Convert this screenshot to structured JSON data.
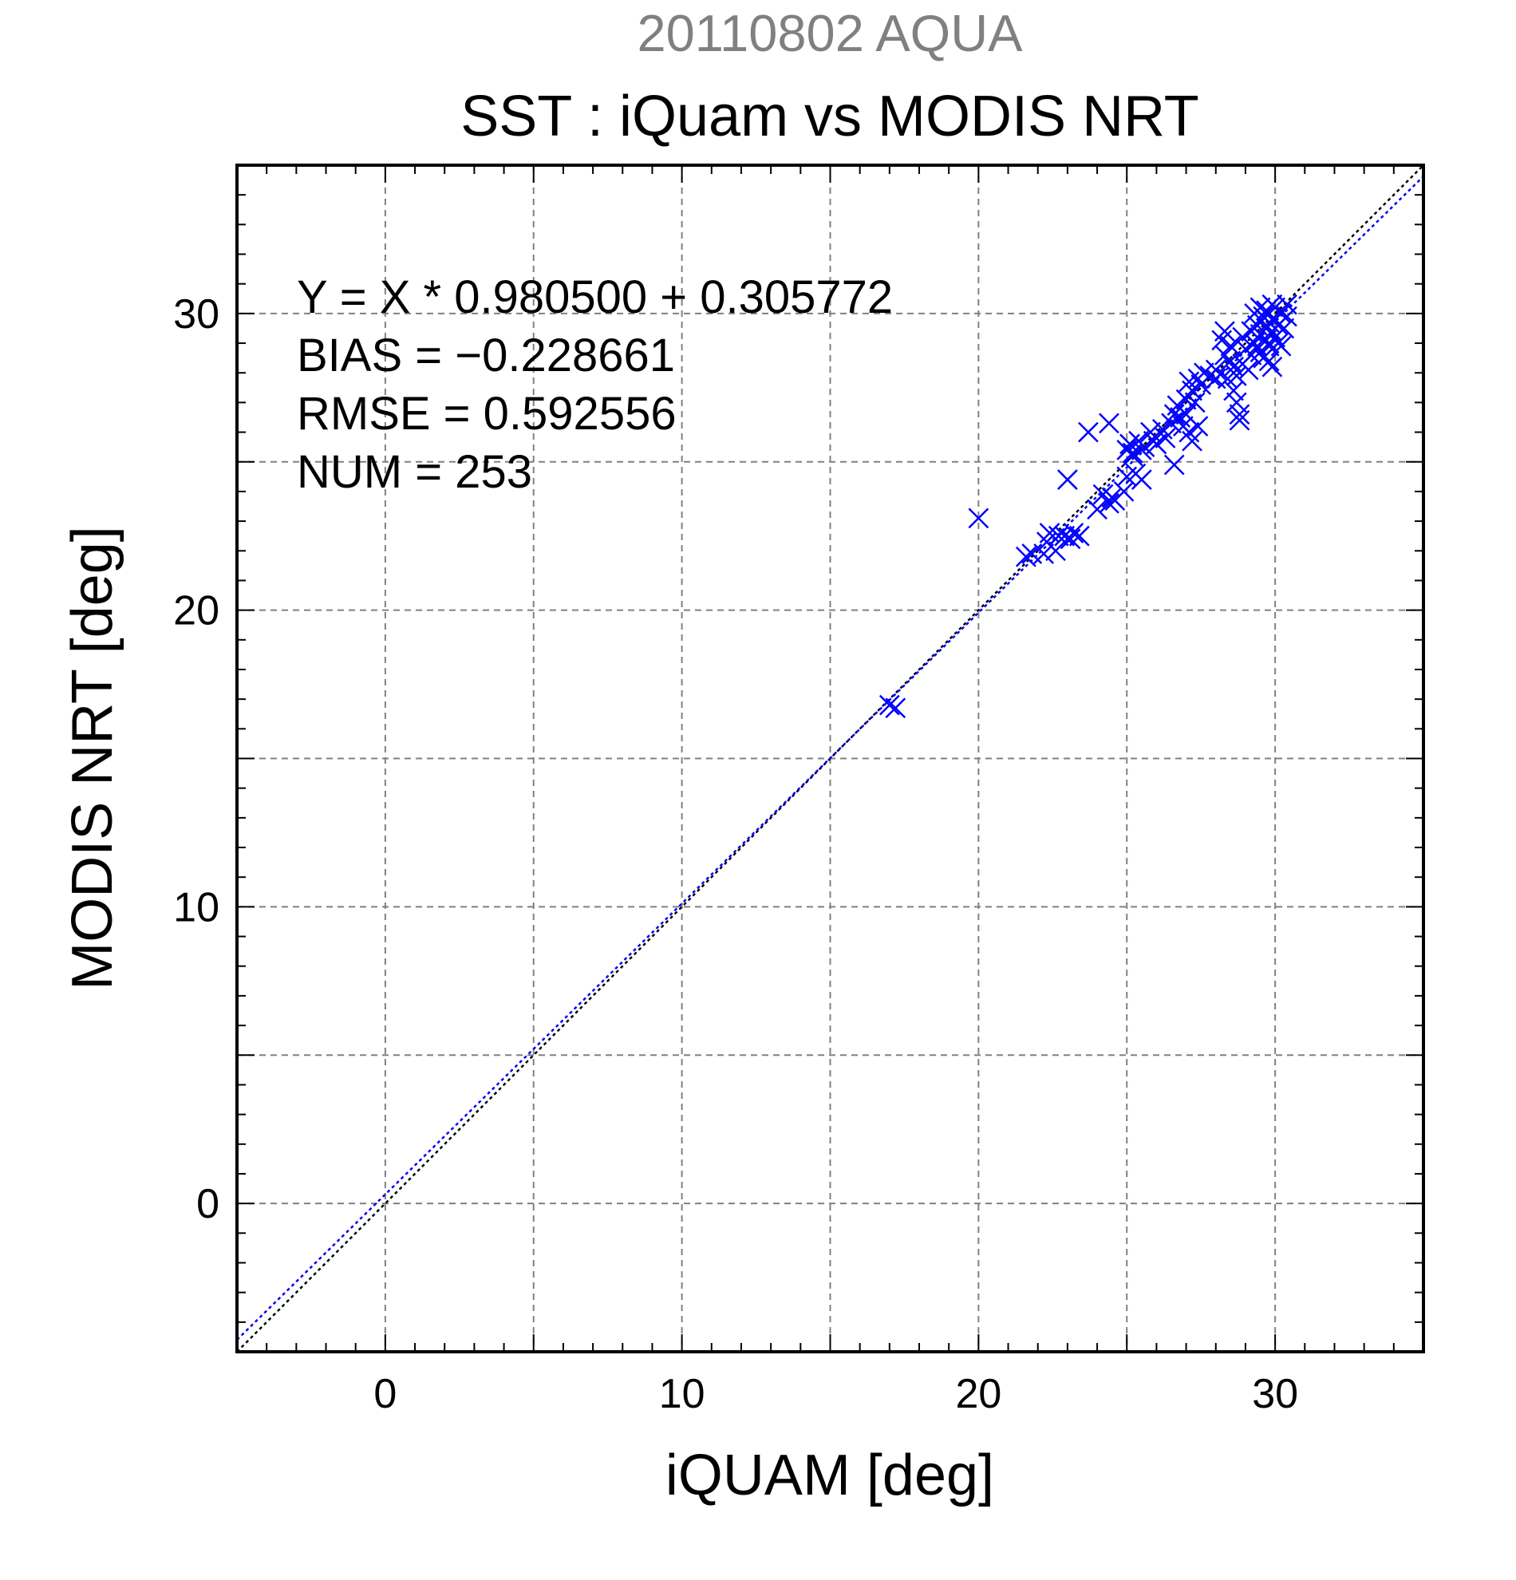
{
  "chart_data": {
    "type": "scatter",
    "suptitle": "20110802 AQUA",
    "title": "SST : iQuam vs MODIS NRT",
    "xlabel": "iQUAM [deg]",
    "ylabel": "MODIS NRT [deg]",
    "xlim": [
      -5,
      35
    ],
    "ylim": [
      -5,
      35
    ],
    "xticks": [
      "0",
      "10",
      "20",
      "30"
    ],
    "yticks": [
      "0",
      "10",
      "20",
      "30"
    ],
    "grid": true,
    "marker": "x",
    "colors": {
      "points": "#0000ff",
      "fit_line": "#0000ff",
      "one_to_one": "#000000",
      "grid": "#808080",
      "suptitle": "#808080"
    },
    "stats": {
      "equation": "Y = X * 0.980500 + 0.305772",
      "bias": "BIAS = −0.228661",
      "rmse": "RMSE = 0.592556",
      "num": "NUM = 253"
    },
    "fit": {
      "slope": 0.9805,
      "intercept": 0.305772
    },
    "points": [
      [
        17.0,
        16.8
      ],
      [
        17.2,
        16.7
      ],
      [
        20.0,
        23.1
      ],
      [
        21.6,
        21.8
      ],
      [
        21.8,
        21.9
      ],
      [
        22.2,
        21.9
      ],
      [
        22.3,
        22.3
      ],
      [
        22.4,
        22.6
      ],
      [
        22.6,
        22.0
      ],
      [
        22.7,
        22.5
      ],
      [
        22.9,
        22.5
      ],
      [
        23.1,
        22.4
      ],
      [
        23.2,
        22.6
      ],
      [
        23.4,
        22.5
      ],
      [
        23.0,
        24.4
      ],
      [
        23.7,
        26.0
      ],
      [
        24.0,
        23.4
      ],
      [
        24.2,
        23.9
      ],
      [
        24.4,
        23.6
      ],
      [
        24.5,
        23.8
      ],
      [
        24.6,
        23.7
      ],
      [
        24.9,
        24.0
      ],
      [
        24.4,
        26.3
      ],
      [
        25.0,
        24.5
      ],
      [
        25.0,
        25.4
      ],
      [
        25.1,
        25.6
      ],
      [
        25.2,
        25.2
      ],
      [
        25.2,
        25.3
      ],
      [
        25.3,
        24.6
      ],
      [
        25.4,
        25.7
      ],
      [
        25.5,
        25.4
      ],
      [
        25.6,
        25.5
      ],
      [
        25.5,
        24.4
      ],
      [
        25.8,
        26.0
      ],
      [
        25.9,
        25.7
      ],
      [
        26.0,
        25.6
      ],
      [
        26.2,
        26.1
      ],
      [
        26.3,
        25.8
      ],
      [
        26.5,
        26.3
      ],
      [
        26.6,
        26.6
      ],
      [
        26.6,
        24.9
      ],
      [
        26.7,
        26.9
      ],
      [
        26.8,
        26.5
      ],
      [
        26.9,
        26.2
      ],
      [
        27.0,
        27.1
      ],
      [
        27.0,
        26.6
      ],
      [
        27.1,
        27.7
      ],
      [
        27.1,
        26.0
      ],
      [
        27.2,
        27.4
      ],
      [
        27.2,
        25.7
      ],
      [
        27.3,
        27.0
      ],
      [
        27.4,
        27.8
      ],
      [
        27.4,
        26.2
      ],
      [
        27.5,
        27.6
      ],
      [
        27.6,
        28.0
      ],
      [
        27.8,
        27.9
      ],
      [
        28.0,
        27.8
      ],
      [
        28.0,
        28.1
      ],
      [
        28.2,
        29.1
      ],
      [
        28.3,
        29.4
      ],
      [
        28.3,
        28.6
      ],
      [
        28.4,
        27.8
      ],
      [
        28.5,
        28.4
      ],
      [
        28.5,
        28.9
      ],
      [
        28.6,
        27.4
      ],
      [
        28.6,
        28.2
      ],
      [
        28.7,
        27.0
      ],
      [
        28.7,
        27.9
      ],
      [
        28.8,
        26.6
      ],
      [
        28.8,
        26.4
      ],
      [
        28.9,
        28.3
      ],
      [
        28.9,
        29.2
      ],
      [
        29.0,
        28.8
      ],
      [
        29.1,
        28.1
      ],
      [
        29.2,
        28.6
      ],
      [
        29.2,
        29.4
      ],
      [
        29.3,
        29.0
      ],
      [
        29.3,
        30.0
      ],
      [
        29.4,
        28.9
      ],
      [
        29.4,
        29.6
      ],
      [
        29.5,
        29.3
      ],
      [
        29.5,
        28.7
      ],
      [
        29.5,
        30.2
      ],
      [
        29.6,
        29.9
      ],
      [
        29.6,
        28.5
      ],
      [
        29.7,
        29.5
      ],
      [
        29.7,
        29.1
      ],
      [
        29.7,
        30.1
      ],
      [
        29.8,
        28.9
      ],
      [
        29.8,
        29.7
      ],
      [
        29.8,
        28.4
      ],
      [
        29.9,
        30.3
      ],
      [
        29.9,
        29.4
      ],
      [
        29.9,
        28.2
      ],
      [
        30.0,
        29.8
      ],
      [
        30.0,
        29.2
      ],
      [
        30.0,
        30.2
      ],
      [
        30.1,
        29.6
      ],
      [
        30.1,
        29.0
      ],
      [
        30.2,
        30.0
      ],
      [
        30.2,
        28.9
      ],
      [
        30.3,
        29.5
      ],
      [
        30.4,
        30.3
      ],
      [
        30.4,
        29.9
      ]
    ]
  }
}
